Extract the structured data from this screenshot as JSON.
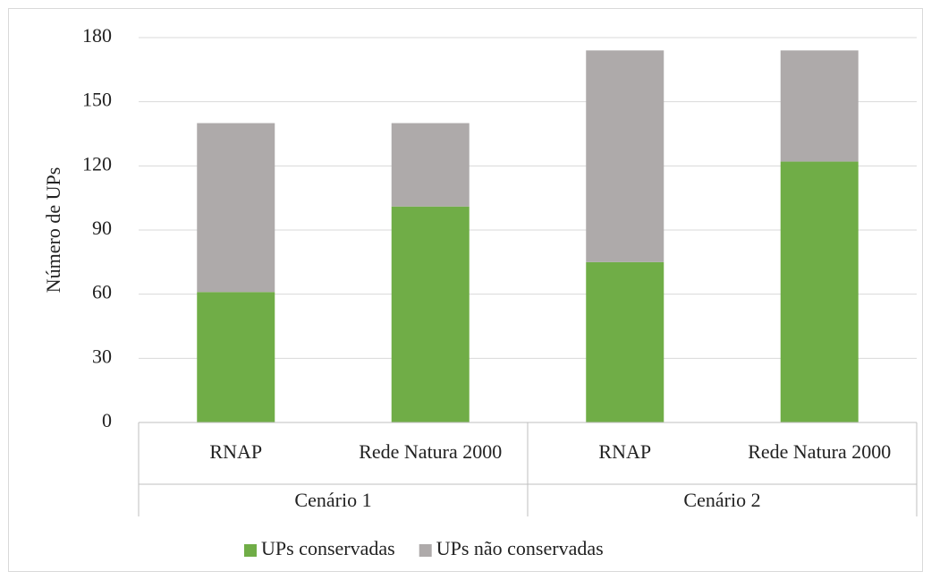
{
  "chart_data": {
    "type": "stacked_bar",
    "y_axis_label": "Número de UPs",
    "categories": [
      "RNAP",
      "Rede Natura 2000",
      "RNAP",
      "Rede Natura 2000"
    ],
    "groups": [
      "Cenário 1",
      "Cenário 2"
    ],
    "series": [
      {
        "name": "UPs conservadas",
        "color": "#70ad47",
        "values": [
          61,
          101,
          75,
          122
        ]
      },
      {
        "name": "UPs não conservadas",
        "color": "#aeaaaa",
        "values": [
          79,
          39,
          99,
          52
        ]
      }
    ],
    "ylim": [
      0,
      180
    ],
    "yticks": [
      0,
      30,
      60,
      90,
      120,
      150,
      180
    ],
    "grid": true,
    "legend": "bottom"
  }
}
